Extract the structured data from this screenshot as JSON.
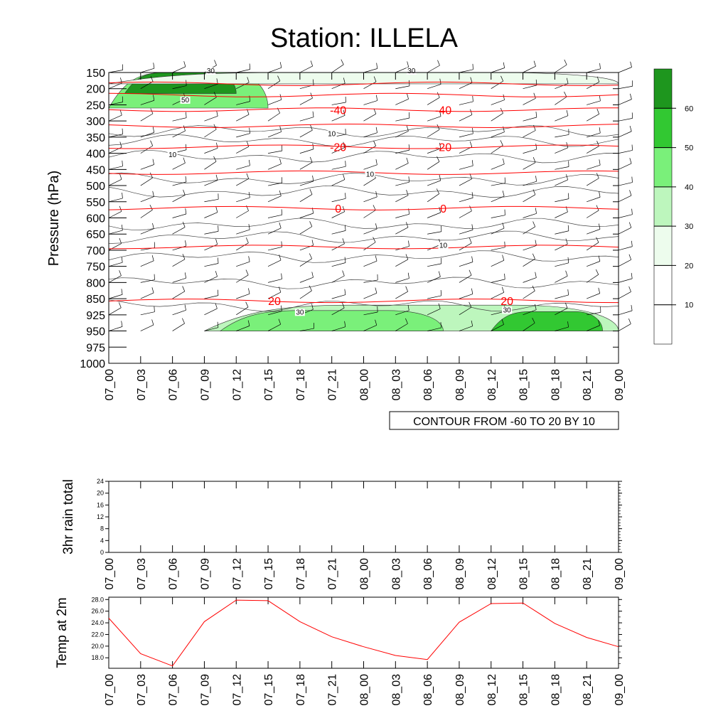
{
  "title": "Station: ILLELA",
  "info_box": "CONTOUR FROM -60 TO 20 BY 10",
  "colors": {
    "temp_contour": "#ff0000",
    "series_line": "#ff0000",
    "fill_levels": [
      "#ffffff",
      "#ffffff",
      "#edfced",
      "#bdf6bd",
      "#7af07a",
      "#32c832",
      "#1e961e"
    ]
  },
  "chart_data": [
    {
      "type": "heatmap",
      "title": "Station: ILLELA",
      "xlabel": "",
      "ylabel": "Pressure (hPa)",
      "x": [
        "07_00",
        "07_03",
        "07_06",
        "07_09",
        "07_12",
        "07_15",
        "07_18",
        "07_21",
        "08_00",
        "08_03",
        "08_06",
        "08_09",
        "08_12",
        "08_15",
        "08_18",
        "08_21",
        "09_00"
      ],
      "pressure_levels": [
        150,
        200,
        250,
        300,
        350,
        400,
        450,
        500,
        550,
        600,
        650,
        700,
        750,
        800,
        850,
        925,
        950,
        975,
        1000
      ],
      "legend_levels": [
        10,
        20,
        30,
        40,
        50,
        60
      ],
      "contour_labels": [
        "10",
        "30",
        "50"
      ],
      "temperature_contours": [
        {
          "value": -40,
          "label": "-40",
          "pressure": 265
        },
        {
          "value": -20,
          "label": "-20",
          "pressure": 380
        },
        {
          "value": 0,
          "label": "0",
          "pressure": 570
        },
        {
          "value": 20,
          "label": "20",
          "pressure": 860
        }
      ],
      "extra_temperature_contours_pressure": [
        185,
        220,
        315,
        460,
        690
      ],
      "speed_regions": [
        {
          "level": 40,
          "t_start": 0,
          "t_end": 5,
          "p_top": 150,
          "p_bottom": 260
        },
        {
          "level": 60,
          "t_start": 0.5,
          "t_end": 4,
          "p_top": 150,
          "p_bottom": 215
        },
        {
          "level": 20,
          "t_start": 0,
          "t_end": 16,
          "p_top": 150,
          "p_bottom": 185
        },
        {
          "level": 30,
          "t_start": 3,
          "t_end": 16,
          "p_top": 880,
          "p_bottom": 950
        },
        {
          "level": 40,
          "t_start": 3.5,
          "t_end": 10.5,
          "p_top": 905,
          "p_bottom": 950
        },
        {
          "level": 50,
          "t_start": 12,
          "t_end": 15.5,
          "p_top": 910,
          "p_bottom": 950
        }
      ],
      "info": "CONTOUR FROM -60 TO 20 BY 10"
    },
    {
      "type": "line",
      "ylabel": "3hr rain total",
      "x": [
        "07_00",
        "07_03",
        "07_06",
        "07_09",
        "07_12",
        "07_15",
        "07_18",
        "07_21",
        "08_00",
        "08_03",
        "08_06",
        "08_09",
        "08_12",
        "08_15",
        "08_18",
        "08_21",
        "09_00"
      ],
      "yticks": [
        0,
        4,
        8,
        12,
        16,
        20,
        24
      ],
      "ylim": [
        0,
        24
      ],
      "values": [
        0,
        0,
        0,
        0,
        0,
        0,
        0,
        0,
        0,
        0,
        0,
        0,
        0,
        0,
        0,
        0,
        0
      ]
    },
    {
      "type": "line",
      "ylabel": "Temp at 2m",
      "x": [
        "07_00",
        "07_03",
        "07_06",
        "07_09",
        "07_12",
        "07_15",
        "07_18",
        "07_21",
        "08_00",
        "08_03",
        "08_06",
        "08_09",
        "08_12",
        "08_15",
        "08_18",
        "08_21",
        "09_00"
      ],
      "yticks": [
        "18.0",
        "20.0",
        "22.0",
        "24.0",
        "26.0",
        "28.0"
      ],
      "ylim": [
        16.2,
        28.4
      ],
      "values": [
        24.8,
        18.7,
        16.6,
        24.2,
        27.9,
        27.8,
        24.2,
        21.6,
        19.9,
        18.4,
        17.7,
        24.1,
        27.3,
        27.4,
        23.9,
        21.5,
        19.9
      ]
    }
  ]
}
